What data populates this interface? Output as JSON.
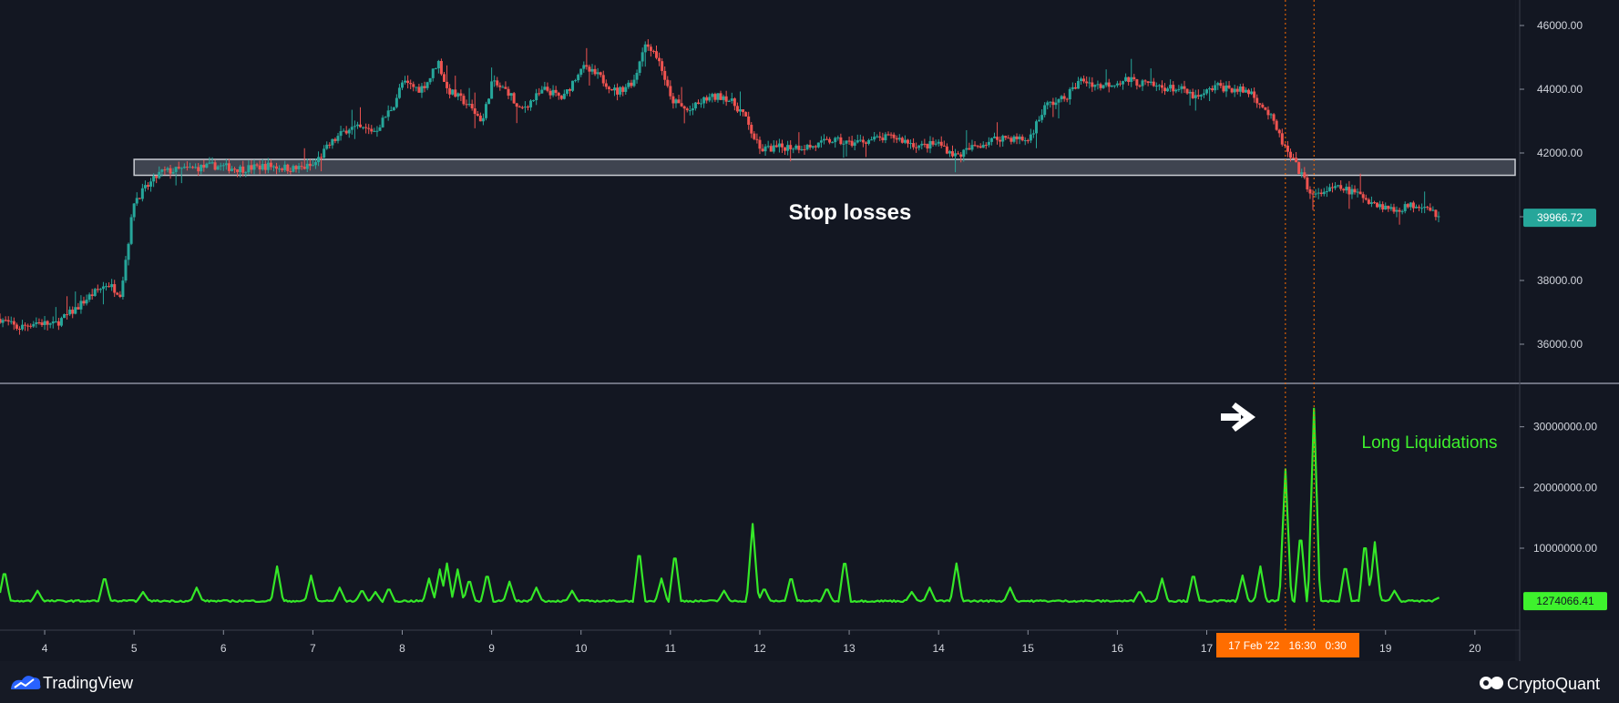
{
  "colors": {
    "background": "#131722",
    "footer": "#161a25",
    "up_candle": "#26a69a",
    "down_candle": "#ef5350",
    "liquidations": "#35e828",
    "price_tag": "#26a69a",
    "liq_tag": "#3ef22d",
    "date_tag": "#ff6d00",
    "zone_fill": "#8a8f9c",
    "crosshair": "#ff6d00"
  },
  "chart_data": [
    {
      "type": "candlestick",
      "pane": "price",
      "x_range": [
        3.5,
        20.45
      ],
      "ylim": [
        34800,
        46800
      ],
      "y_ticks": [
        {
          "value": 36000,
          "label": "36000.00"
        },
        {
          "value": 38000,
          "label": "38000.00"
        },
        {
          "value": 40000,
          "label": "40000.00"
        },
        {
          "value": 42000,
          "label": "42000.00"
        },
        {
          "value": 44000,
          "label": "44000.00"
        },
        {
          "value": 46000,
          "label": "46000.00"
        }
      ],
      "last_price": {
        "value": 39966.72,
        "label": "39966.72"
      },
      "close_path": [
        [
          3.5,
          36800
        ],
        [
          3.7,
          36500
        ],
        [
          3.9,
          36700
        ],
        [
          4.1,
          36600
        ],
        [
          4.3,
          37000
        ],
        [
          4.5,
          37500
        ],
        [
          4.7,
          37900
        ],
        [
          4.85,
          37600
        ],
        [
          4.95,
          39500
        ],
        [
          5.0,
          40500
        ],
        [
          5.1,
          40800
        ],
        [
          5.3,
          41400
        ],
        [
          5.6,
          41500
        ],
        [
          5.9,
          41600
        ],
        [
          6.2,
          41500
        ],
        [
          6.5,
          41600
        ],
        [
          6.8,
          41500
        ],
        [
          7.0,
          41600
        ],
        [
          7.2,
          42300
        ],
        [
          7.4,
          42800
        ],
        [
          7.7,
          42700
        ],
        [
          7.9,
          43500
        ],
        [
          8.0,
          44200
        ],
        [
          8.2,
          44000
        ],
        [
          8.3,
          44300
        ],
        [
          8.4,
          44900
        ],
        [
          8.5,
          44000
        ],
        [
          8.7,
          43600
        ],
        [
          8.9,
          43000
        ],
        [
          9.0,
          44200
        ],
        [
          9.2,
          43900
        ],
        [
          9.3,
          43300
        ],
        [
          9.6,
          44000
        ],
        [
          9.8,
          43700
        ],
        [
          10.0,
          44700
        ],
        [
          10.2,
          44400
        ],
        [
          10.4,
          43900
        ],
        [
          10.6,
          44300
        ],
        [
          10.7,
          45400
        ],
        [
          10.8,
          45300
        ],
        [
          10.9,
          44700
        ],
        [
          11.0,
          43700
        ],
        [
          11.2,
          43300
        ],
        [
          11.4,
          43700
        ],
        [
          11.6,
          43800
        ],
        [
          11.8,
          43300
        ],
        [
          12.0,
          42100
        ],
        [
          12.3,
          42200
        ],
        [
          12.6,
          42200
        ],
        [
          12.8,
          42400
        ],
        [
          13.0,
          42300
        ],
        [
          13.2,
          42400
        ],
        [
          13.5,
          42500
        ],
        [
          13.8,
          42200
        ],
        [
          14.0,
          42300
        ],
        [
          14.2,
          41900
        ],
        [
          14.4,
          42200
        ],
        [
          14.7,
          42500
        ],
        [
          15.0,
          42400
        ],
        [
          15.2,
          43500
        ],
        [
          15.4,
          43700
        ],
        [
          15.6,
          44300
        ],
        [
          15.8,
          44100
        ],
        [
          16.1,
          44300
        ],
        [
          16.4,
          44100
        ],
        [
          16.7,
          44000
        ],
        [
          16.9,
          43700
        ],
        [
          17.1,
          44100
        ],
        [
          17.3,
          44000
        ],
        [
          17.5,
          43900
        ],
        [
          17.7,
          43200
        ],
        [
          17.8,
          42600
        ],
        [
          17.9,
          42000
        ],
        [
          18.0,
          41600
        ],
        [
          18.2,
          40600
        ],
        [
          18.3,
          40800
        ],
        [
          18.5,
          40900
        ],
        [
          18.7,
          40700
        ],
        [
          18.9,
          40400
        ],
        [
          19.1,
          40200
        ],
        [
          19.2,
          40300
        ],
        [
          19.4,
          40400
        ],
        [
          19.5,
          40300
        ],
        [
          19.6,
          39967
        ]
      ]
    },
    {
      "type": "line",
      "pane": "liquidations",
      "name": "Long Liquidations",
      "x_range": [
        3.5,
        20.45
      ],
      "ylim": [
        -3500000,
        37000000
      ],
      "y_ticks": [
        {
          "value": 10000000,
          "label": "10000000.00"
        },
        {
          "value": 20000000,
          "label": "20000000.00"
        },
        {
          "value": 30000000,
          "label": "30000000.00"
        }
      ],
      "last_value": {
        "value": 1274066.41,
        "label": "1274066.41"
      },
      "baseline": 1300000,
      "peaks": [
        [
          3.55,
          6500000
        ],
        [
          3.92,
          3000000
        ],
        [
          4.67,
          5500000
        ],
        [
          5.1,
          2800000
        ],
        [
          5.7,
          3500000
        ],
        [
          6.6,
          7000000
        ],
        [
          6.98,
          5500000
        ],
        [
          7.3,
          3500000
        ],
        [
          7.55,
          3200000
        ],
        [
          7.7,
          2800000
        ],
        [
          7.85,
          3500000
        ],
        [
          8.3,
          5000000
        ],
        [
          8.42,
          6500000
        ],
        [
          8.5,
          7500000
        ],
        [
          8.62,
          6500000
        ],
        [
          8.75,
          5000000
        ],
        [
          8.95,
          6000000
        ],
        [
          9.2,
          4500000
        ],
        [
          9.5,
          3500000
        ],
        [
          9.9,
          3000000
        ],
        [
          10.65,
          10000000
        ],
        [
          10.9,
          5000000
        ],
        [
          11.05,
          9500000
        ],
        [
          11.6,
          3000000
        ],
        [
          11.92,
          14000000
        ],
        [
          12.05,
          3500000
        ],
        [
          12.35,
          5500000
        ],
        [
          12.75,
          3500000
        ],
        [
          12.95,
          8500000
        ],
        [
          13.7,
          2800000
        ],
        [
          13.9,
          3500000
        ],
        [
          14.2,
          7500000
        ],
        [
          14.8,
          3500000
        ],
        [
          16.25,
          3000000
        ],
        [
          16.5,
          5000000
        ],
        [
          16.85,
          6000000
        ],
        [
          17.4,
          5500000
        ],
        [
          17.6,
          7000000
        ],
        [
          17.88,
          23000000
        ],
        [
          18.05,
          13000000
        ],
        [
          18.2,
          33000000
        ],
        [
          18.55,
          7500000
        ],
        [
          18.77,
          11500000
        ],
        [
          18.88,
          11000000
        ],
        [
          19.1,
          3000000
        ]
      ]
    }
  ],
  "x_axis": {
    "ticks": [
      {
        "value": 4,
        "label": "4"
      },
      {
        "value": 5,
        "label": "5"
      },
      {
        "value": 6,
        "label": "6"
      },
      {
        "value": 7,
        "label": "7"
      },
      {
        "value": 8,
        "label": "8"
      },
      {
        "value": 9,
        "label": "9"
      },
      {
        "value": 10,
        "label": "10"
      },
      {
        "value": 11,
        "label": "11"
      },
      {
        "value": 12,
        "label": "12"
      },
      {
        "value": 13,
        "label": "13"
      },
      {
        "value": 14,
        "label": "14"
      },
      {
        "value": 15,
        "label": "15"
      },
      {
        "value": 16,
        "label": "16"
      },
      {
        "value": 17,
        "label": "17"
      },
      {
        "value": 19,
        "label": "19"
      },
      {
        "value": 20,
        "label": "20"
      }
    ],
    "crosshair_tag": "17 Feb '22   16:30   0:30",
    "crosshair_x": [
      17.88,
      18.2
    ]
  },
  "annotations": {
    "stop_zone": {
      "x_start": 5.0,
      "x_end": 20.45,
      "y_low": 41300,
      "y_high": 41800
    },
    "stop_losses_label": "Stop losses",
    "long_liquidations_label": "Long Liquidations",
    "arrow_icon": "right-arrow-icon"
  },
  "footer": {
    "tradingview": "TradingView",
    "cryptoquant": "CryptoQuant"
  }
}
